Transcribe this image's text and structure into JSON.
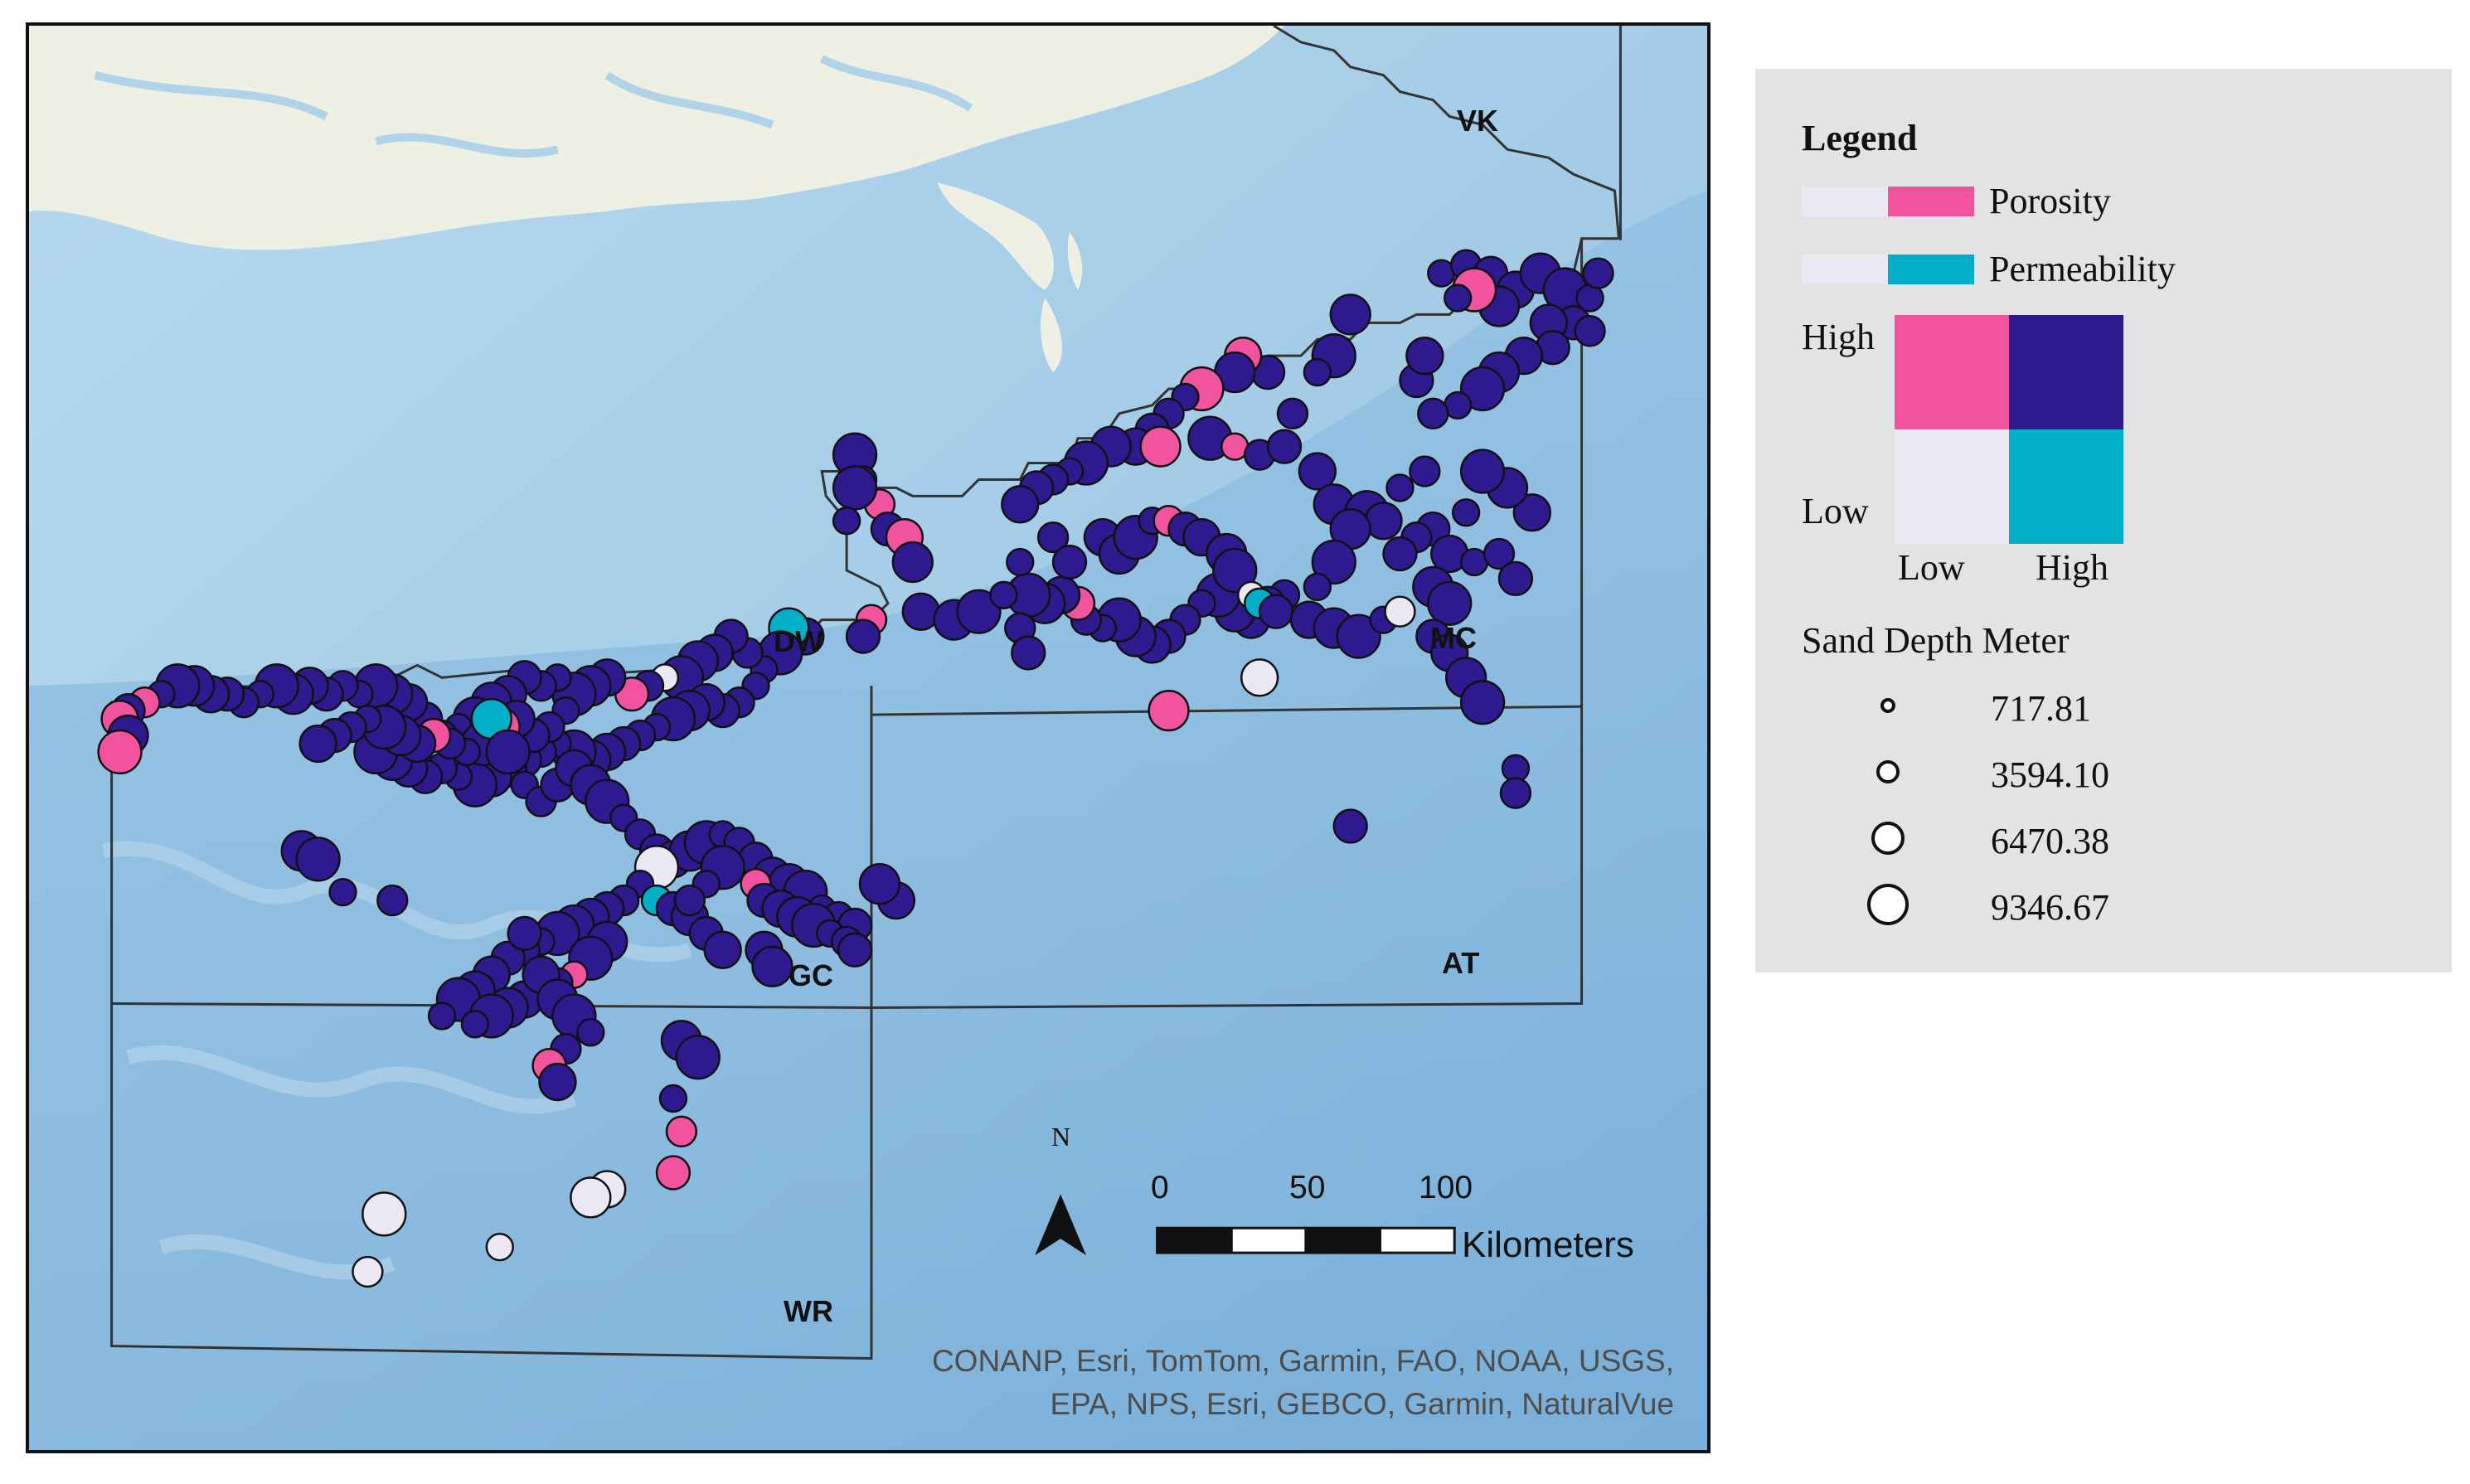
{
  "map": {
    "area_labels": {
      "vk": "VK",
      "dw": "DW",
      "mc": "MC",
      "gc": "GC",
      "at": "AT",
      "wr": "WR"
    },
    "north_label": "N",
    "scale_bar": {
      "ticks": [
        "0",
        "50",
        "100"
      ],
      "unit": "Kilometers"
    },
    "attribution_line1": "CONANP, Esri, TomTom, Garmin, FAO, NOAA, USGS,",
    "attribution_line2": "EPA, NPS, Esri, GEBCO, Garmin, NaturalVue",
    "colors": {
      "sea": "#a9cfe9",
      "land": "#eef0e4",
      "porosity_high": "#f2539f",
      "permeability_high": "#03aec9",
      "both_high": "#2e1a8e",
      "both_low": "#ece8f3"
    }
  },
  "legend": {
    "title": "Legend",
    "porosity_label": "Porosity",
    "permeability_label": "Permeability",
    "grid_high": "High",
    "grid_low": "Low",
    "axis_low": "Low",
    "axis_high": "High",
    "size_title": "Sand Depth Meter",
    "size_values": [
      "717.81",
      "3594.10",
      "6470.38",
      "9346.67"
    ]
  }
}
